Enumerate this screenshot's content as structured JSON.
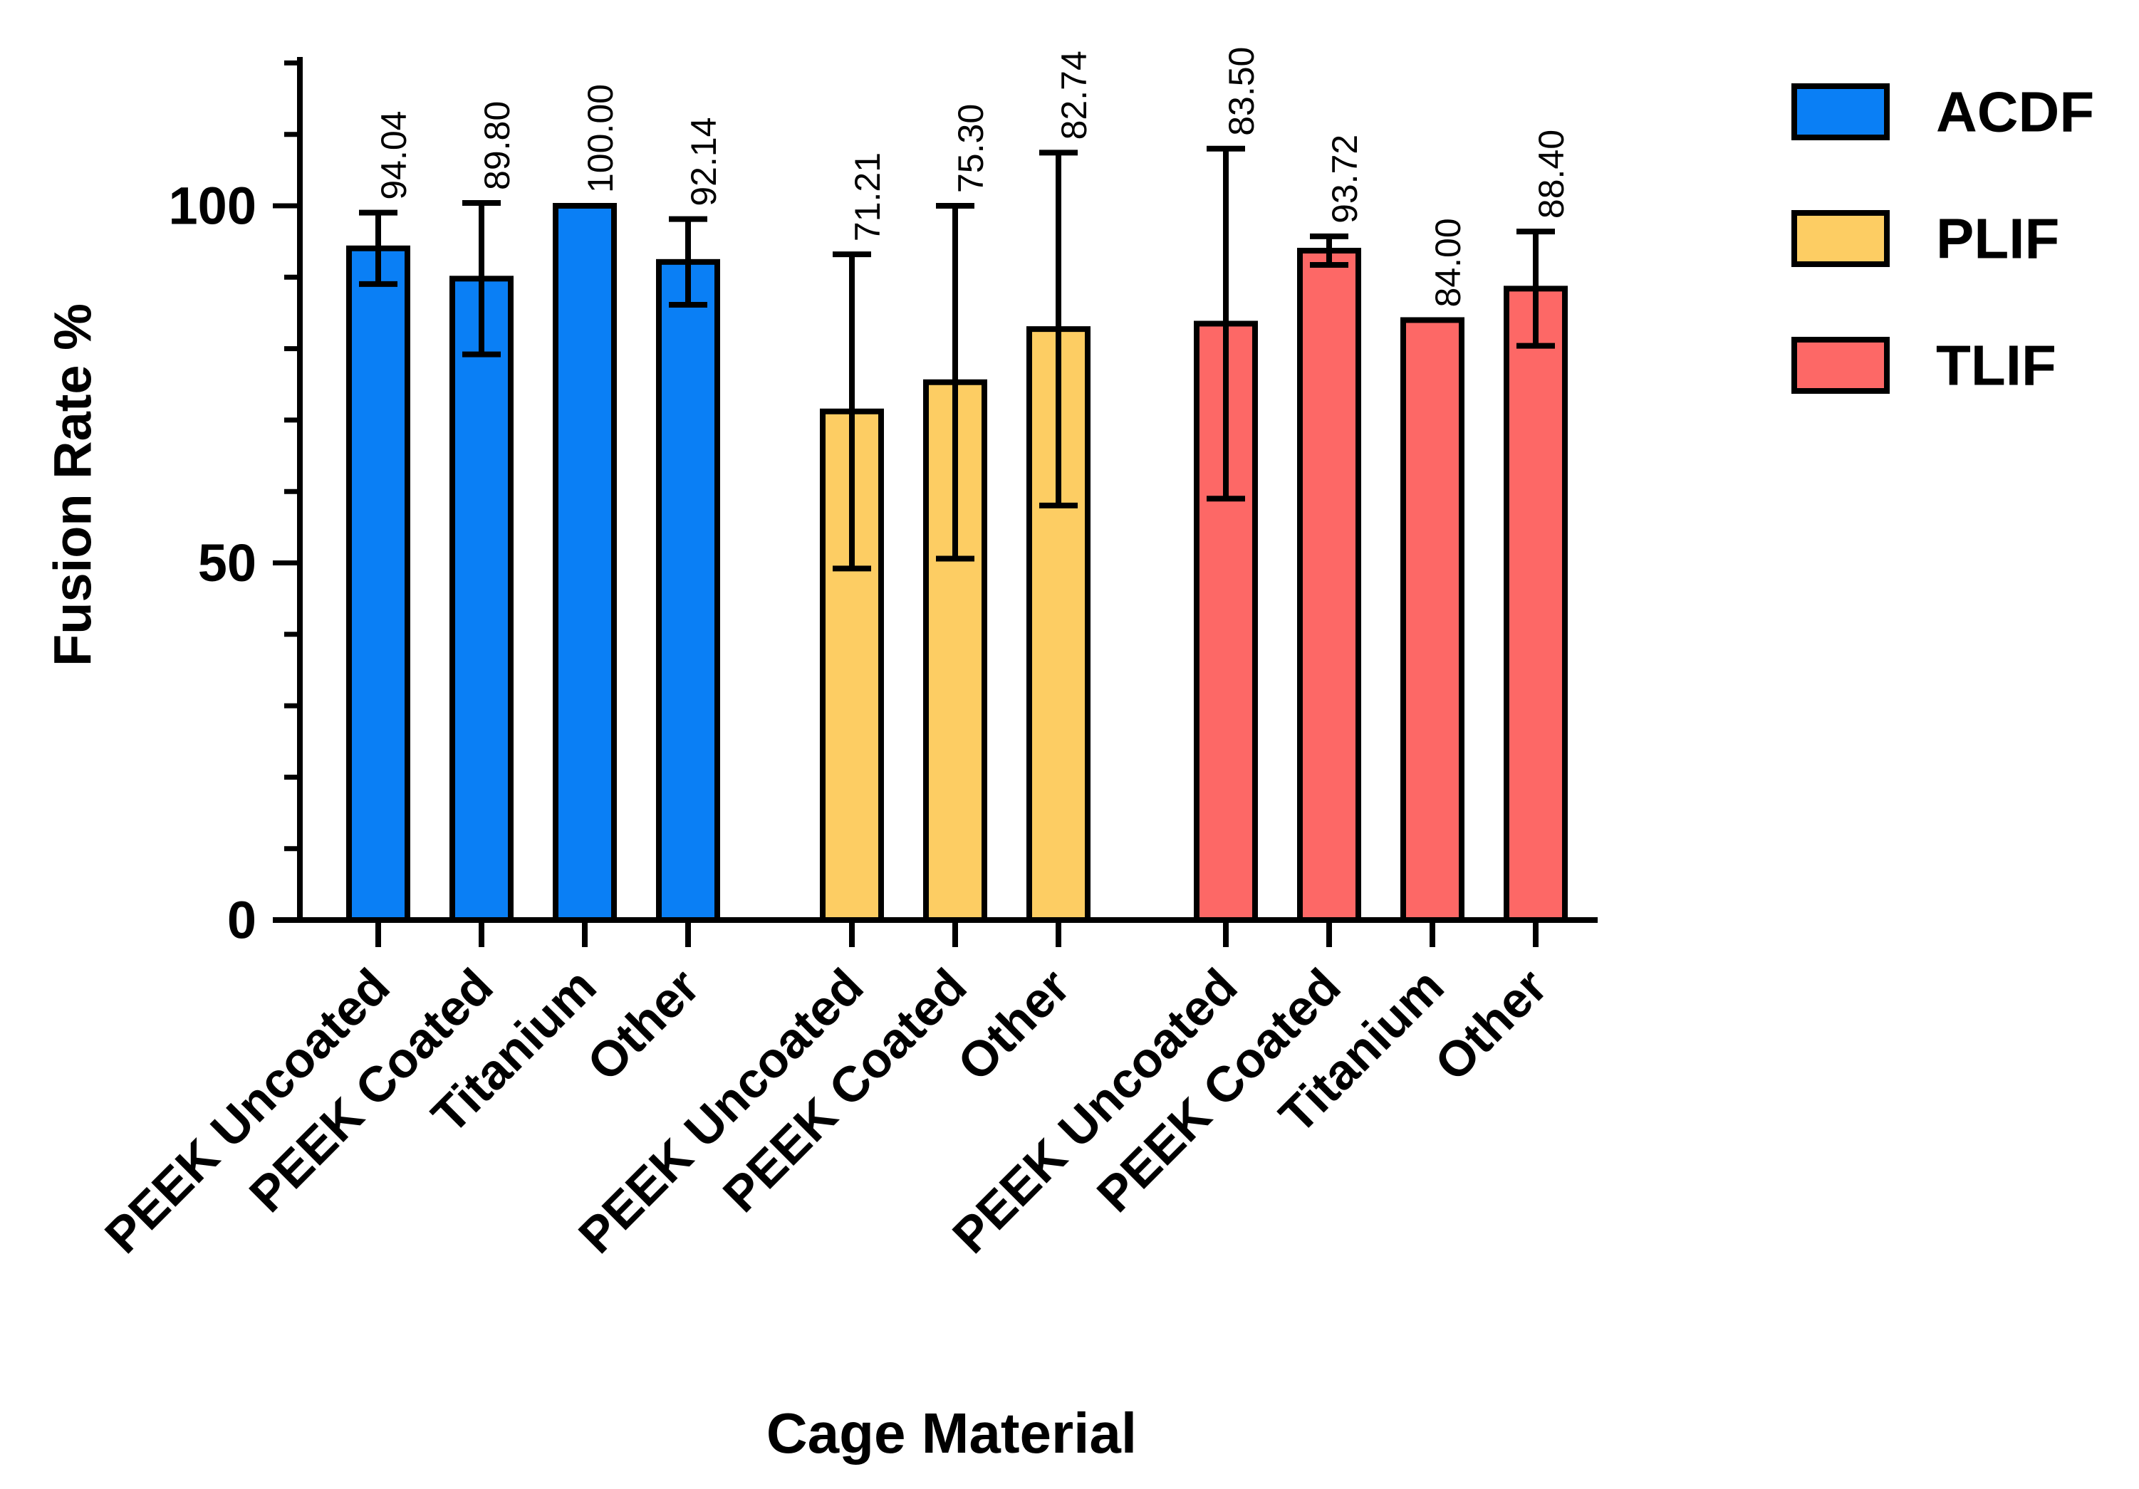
{
  "chart_data": {
    "type": "bar",
    "xlabel": "Cage Material",
    "ylabel": "Fusion Rate %",
    "ylim": [
      0,
      120
    ],
    "major_ticks": [
      0,
      50,
      100
    ],
    "minor_tick_step": 10,
    "legend_position": "top-right",
    "groups": [
      {
        "name": "ACDF",
        "color": "#0a7ff5",
        "categories": [
          "PEEK Uncoated",
          "PEEK Coated",
          "Titanium",
          "Other"
        ],
        "values": [
          94.04,
          89.8,
          100.0,
          92.14
        ],
        "labels": [
          "94.04",
          "89.80",
          "100.00",
          "92.14"
        ],
        "error": [
          5.0,
          10.6,
          0,
          6.0
        ]
      },
      {
        "name": "PLIF",
        "color": "#fdcd63",
        "categories": [
          "PEEK Uncoated",
          "PEEK Coated",
          "Other"
        ],
        "values": [
          71.21,
          75.3,
          82.74
        ],
        "labels": [
          "71.21",
          "75.30",
          "82.74"
        ],
        "error": [
          22.0,
          24.7,
          24.7
        ]
      },
      {
        "name": "TLIF",
        "color": "#fd6866",
        "categories": [
          "PEEK Uncoated",
          "PEEK Coated",
          "Titanium",
          "Other"
        ],
        "values": [
          83.5,
          93.72,
          84.0,
          88.4
        ],
        "labels": [
          "83.50",
          "93.72",
          "84.00",
          "88.40"
        ],
        "error": [
          24.5,
          2.0,
          0,
          8.0
        ]
      }
    ]
  }
}
